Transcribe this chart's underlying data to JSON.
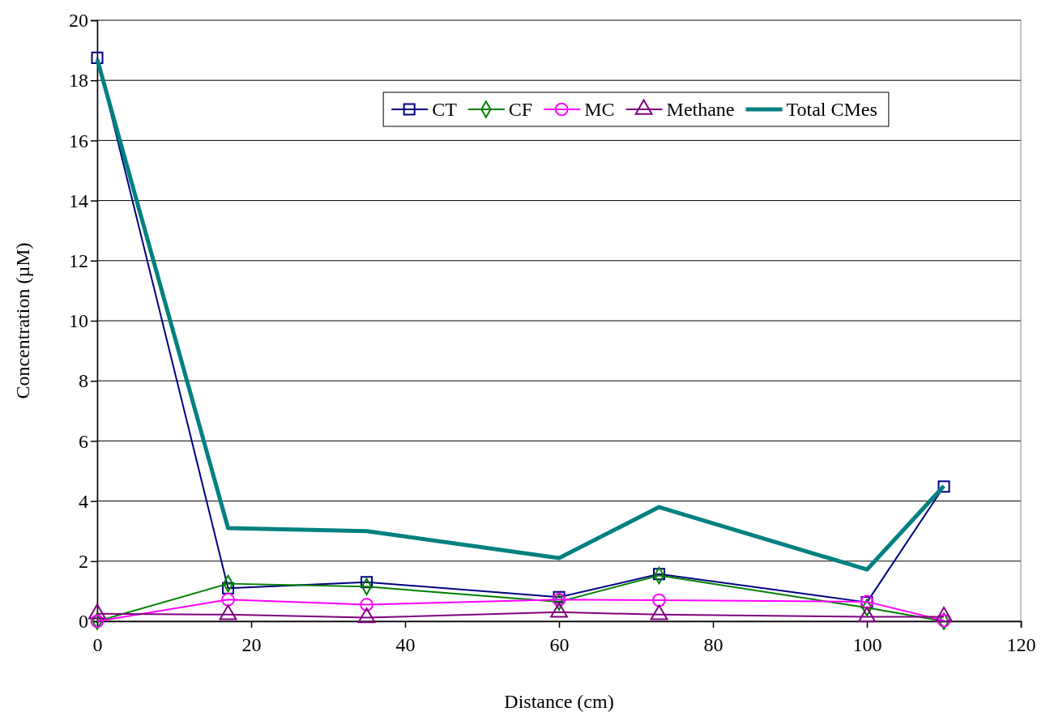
{
  "chart_data": {
    "type": "line",
    "xlabel": "Distance (cm)",
    "ylabel": "Concentration (µM)",
    "x": [
      0,
      17,
      35,
      60,
      73,
      100,
      110
    ],
    "xlim": [
      0,
      120
    ],
    "xticks": [
      0,
      20,
      40,
      60,
      80,
      100,
      120
    ],
    "ylim": [
      0,
      20
    ],
    "yticks": [
      0,
      2,
      4,
      6,
      8,
      10,
      12,
      14,
      16,
      18,
      20
    ],
    "grid": "y",
    "legend": "top",
    "series": [
      {
        "name": "CT",
        "color": "#000080",
        "marker": "square",
        "values": [
          18.75,
          1.1,
          1.3,
          0.8,
          1.57,
          0.63,
          4.48
        ]
      },
      {
        "name": "CF",
        "color": "#008000",
        "marker": "diamond",
        "values": [
          0,
          1.25,
          1.15,
          0.65,
          1.52,
          0.45,
          0
        ]
      },
      {
        "name": "MC",
        "color": "#ff00ff",
        "marker": "circle",
        "values": [
          0,
          0.72,
          0.55,
          0.72,
          0.7,
          0.65,
          0.02
        ]
      },
      {
        "name": "Methane",
        "color": "#800080",
        "marker": "triangle",
        "values": [
          0.25,
          0.22,
          0.12,
          0.3,
          0.22,
          0.15,
          0.15
        ]
      },
      {
        "name": "Total CMes",
        "color": "#008080",
        "marker": "none",
        "values": [
          18.7,
          3.1,
          3.0,
          2.1,
          3.8,
          1.72,
          4.5
        ]
      }
    ]
  }
}
